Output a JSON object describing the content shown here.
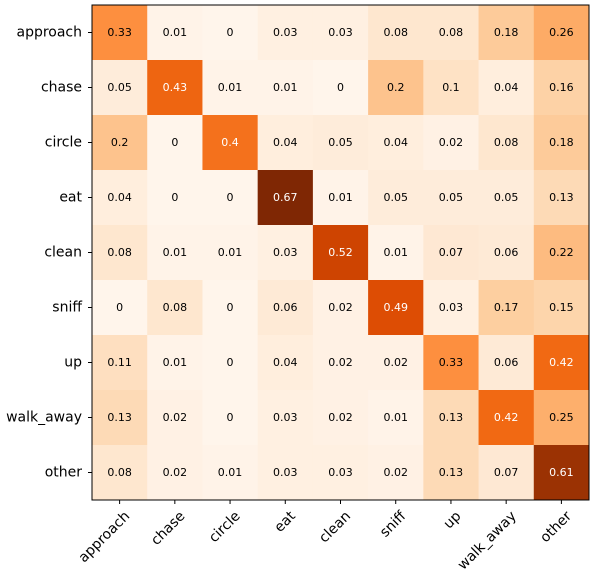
{
  "chart_data": {
    "type": "heatmap",
    "title": "",
    "xlabel": "",
    "ylabel": "",
    "x_categories": [
      "approach",
      "chase",
      "circle",
      "eat",
      "clean",
      "sniff",
      "up",
      "walk_away",
      "other"
    ],
    "y_categories": [
      "approach",
      "chase",
      "circle",
      "eat",
      "clean",
      "sniff",
      "up",
      "walk_away",
      "other"
    ],
    "values": [
      [
        0.33,
        0.01,
        0.0,
        0.03,
        0.03,
        0.08,
        0.08,
        0.18,
        0.26
      ],
      [
        0.05,
        0.43,
        0.01,
        0.01,
        0.0,
        0.2,
        0.1,
        0.04,
        0.16
      ],
      [
        0.2,
        0.0,
        0.4,
        0.04,
        0.05,
        0.04,
        0.02,
        0.08,
        0.18
      ],
      [
        0.04,
        0.0,
        0.0,
        0.67,
        0.01,
        0.05,
        0.05,
        0.05,
        0.13
      ],
      [
        0.08,
        0.01,
        0.01,
        0.03,
        0.52,
        0.01,
        0.07,
        0.06,
        0.22
      ],
      [
        0.0,
        0.08,
        0.0,
        0.06,
        0.02,
        0.49,
        0.03,
        0.17,
        0.15
      ],
      [
        0.11,
        0.01,
        0.0,
        0.04,
        0.02,
        0.02,
        0.33,
        0.06,
        0.42
      ],
      [
        0.13,
        0.02,
        0.0,
        0.03,
        0.02,
        0.01,
        0.13,
        0.42,
        0.25
      ],
      [
        0.08,
        0.02,
        0.01,
        0.03,
        0.03,
        0.02,
        0.13,
        0.07,
        0.61
      ]
    ],
    "colormap": "Oranges",
    "color_range": [
      0.0,
      0.67
    ],
    "grid": false,
    "legend": "none",
    "x_tick_rotation_deg": 45
  }
}
